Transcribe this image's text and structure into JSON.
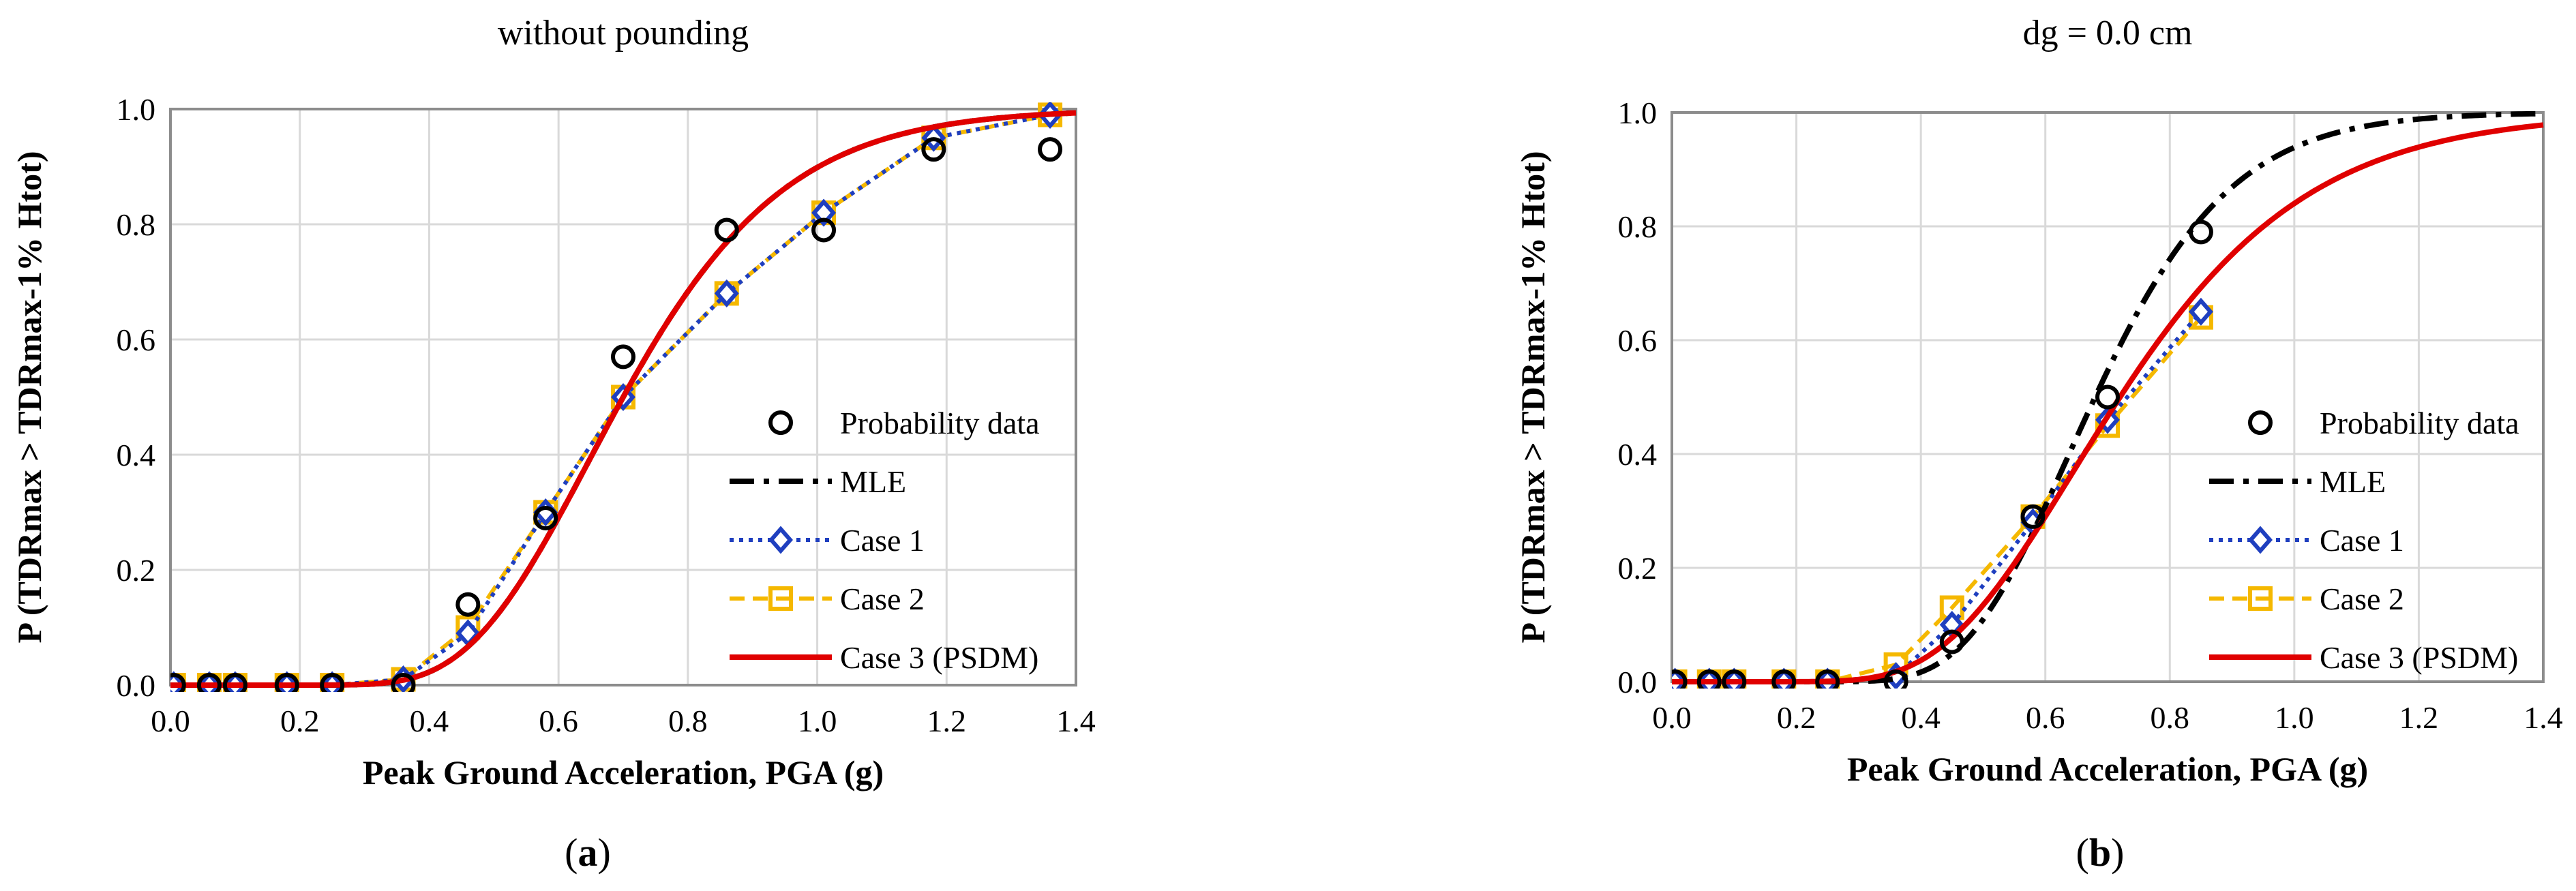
{
  "chart_data": [
    {
      "type": "line",
      "title": "without pounding",
      "caption_letter": "a",
      "xlabel": "Peak Ground Acceleration, PGA (g)",
      "ylabel": "P (TDRmax > TDRmax-1% Htot)",
      "xlim": [
        0,
        1.4
      ],
      "ylim": [
        0,
        1.0
      ],
      "xticks": [
        "0.0",
        "0.2",
        "0.4",
        "0.6",
        "0.8",
        "1.0",
        "1.2",
        "1.4"
      ],
      "yticks": [
        "0.0",
        "0.2",
        "0.4",
        "0.6",
        "0.8",
        "1.0"
      ],
      "grid": true,
      "legend_position": "bottom-right",
      "series": [
        {
          "name": "Probability data",
          "style": "circle-markers",
          "color": "#000000",
          "x": [
            0.005,
            0.06,
            0.1,
            0.18,
            0.25,
            0.36,
            0.46,
            0.58,
            0.7,
            0.86,
            1.01,
            1.18,
            1.36
          ],
          "y": [
            0.0,
            0.0,
            0.0,
            0.0,
            0.0,
            0.0,
            0.14,
            0.29,
            0.57,
            0.79,
            0.79,
            0.93,
            0.93
          ]
        },
        {
          "name": "MLE",
          "style": "dash-dot",
          "color": "#000000",
          "median": 0.7,
          "beta": 0.28
        },
        {
          "name": "Case 1",
          "style": "dotted-diamond",
          "color": "#1f3fbf",
          "x": [
            0.005,
            0.06,
            0.1,
            0.18,
            0.25,
            0.36,
            0.46,
            0.58,
            0.7,
            0.86,
            1.01,
            1.18,
            1.36
          ],
          "y": [
            0.0,
            0.0,
            0.0,
            0.0,
            0.0,
            0.01,
            0.09,
            0.3,
            0.5,
            0.68,
            0.82,
            0.95,
            0.99
          ]
        },
        {
          "name": "Case 2",
          "style": "dashed-square",
          "color": "#f5b800",
          "x": [
            0.005,
            0.06,
            0.1,
            0.18,
            0.25,
            0.36,
            0.46,
            0.58,
            0.7,
            0.86,
            1.01,
            1.18,
            1.36
          ],
          "y": [
            0.0,
            0.0,
            0.0,
            0.0,
            0.0,
            0.01,
            0.1,
            0.3,
            0.5,
            0.68,
            0.82,
            0.95,
            0.99
          ]
        },
        {
          "name": "Case 3 (PSDM)",
          "style": "solid",
          "color": "#e00000",
          "median": 0.7,
          "beta": 0.28
        }
      ]
    },
    {
      "type": "line",
      "title": "dg = 0.0 cm",
      "caption_letter": "b",
      "xlabel": "Peak Ground Acceleration, PGA (g)",
      "ylabel": "P (TDRmax > TDRmax-1% Htot)",
      "xlim": [
        0,
        1.4
      ],
      "ylim": [
        0,
        1.0
      ],
      "xticks": [
        "0.0",
        "0.2",
        "0.4",
        "0.6",
        "0.8",
        "1.0",
        "1.2",
        "1.4"
      ],
      "yticks": [
        "0.0",
        "0.2",
        "0.4",
        "0.6",
        "0.8",
        "1.0"
      ],
      "grid": true,
      "legend_position": "bottom-right",
      "series": [
        {
          "name": "Probability data",
          "style": "circle-markers",
          "color": "#000000",
          "x": [
            0.005,
            0.06,
            0.1,
            0.18,
            0.25,
            0.36,
            0.45,
            0.58,
            0.7,
            0.85
          ],
          "y": [
            0.0,
            0.0,
            0.0,
            0.0,
            0.0,
            0.0,
            0.07,
            0.29,
            0.5,
            0.79
          ]
        },
        {
          "name": "MLE",
          "style": "dash-dot",
          "color": "#000000",
          "median": 0.68,
          "beta": 0.25
        },
        {
          "name": "Case 1",
          "style": "dotted-diamond",
          "color": "#1f3fbf",
          "x": [
            0.005,
            0.06,
            0.1,
            0.18,
            0.25,
            0.36,
            0.45,
            0.58,
            0.7,
            0.85
          ],
          "y": [
            0.0,
            0.0,
            0.0,
            0.0,
            0.0,
            0.01,
            0.1,
            0.28,
            0.46,
            0.65
          ]
        },
        {
          "name": "Case 2",
          "style": "dashed-square",
          "color": "#f5b800",
          "x": [
            0.005,
            0.06,
            0.1,
            0.18,
            0.25,
            0.36,
            0.45,
            0.58,
            0.7,
            0.85
          ],
          "y": [
            0.0,
            0.0,
            0.0,
            0.0,
            0.0,
            0.03,
            0.13,
            0.29,
            0.45,
            0.64
          ]
        },
        {
          "name": "Case 3 (PSDM)",
          "style": "solid",
          "color": "#e00000",
          "median": 0.72,
          "beta": 0.33
        }
      ]
    }
  ]
}
